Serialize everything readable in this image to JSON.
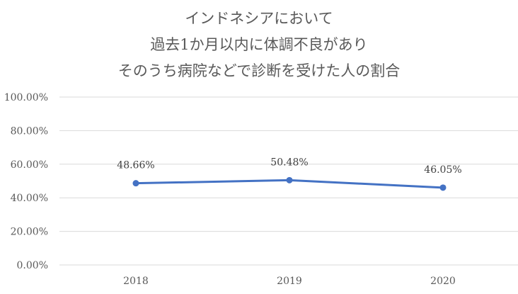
{
  "chart_data": {
    "type": "line",
    "title_lines": [
      "インドネシアにおいて",
      "過去1か月以内に体調不良があり",
      "そのうち病院などで診断を受けた人の割合"
    ],
    "x": [
      "2018",
      "2019",
      "2020"
    ],
    "series": [
      {
        "values": [
          48.66,
          50.48,
          46.05
        ],
        "data_labels": [
          "48.66%",
          "50.48%",
          "46.05%"
        ]
      }
    ],
    "yticks": [
      "0.00%",
      "20.00%",
      "40.00%",
      "60.00%",
      "80.00%",
      "100.00%"
    ],
    "ylim": [
      0,
      100
    ],
    "xlabel": "",
    "ylabel": "",
    "grid": true,
    "legend": "none",
    "colors": {
      "line": "#4472C4",
      "grid": "#D9D9D9",
      "text": "#595959"
    }
  }
}
